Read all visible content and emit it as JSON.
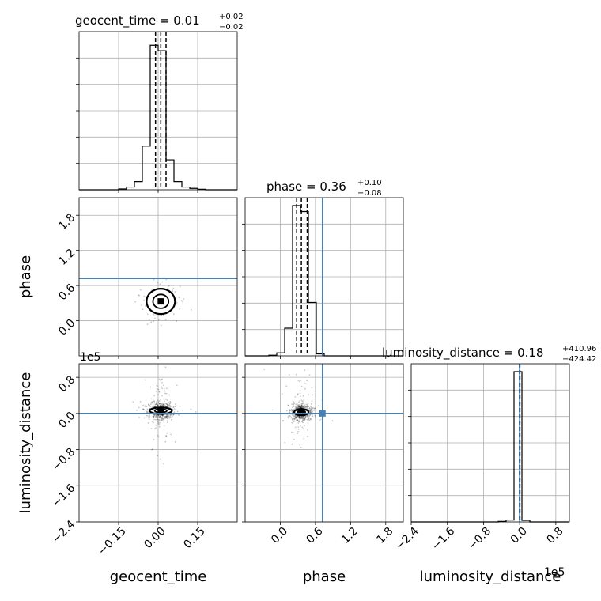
{
  "chart_data": {
    "type": "corner",
    "parameters": [
      "geocent_time",
      "phase",
      "luminosity_distance"
    ],
    "titles": [
      {
        "param": "geocent_time",
        "median": "0.01",
        "plus": "+0.02",
        "minus": "−0.02"
      },
      {
        "param": "phase",
        "median": "0.36",
        "plus": "+0.10",
        "minus": "−0.08"
      },
      {
        "param": "luminosity_distance",
        "median": "0.18",
        "plus": "+410.96",
        "minus": "−424.42"
      }
    ],
    "ranges": {
      "geocent_time": [
        -0.3,
        0.3
      ],
      "phase": [
        -0.6,
        2.1
      ],
      "luminosity_distance": [
        -240000,
        110000
      ]
    },
    "ticks": {
      "geocent_time": {
        "values": [
          -0.15,
          0.0,
          0.15
        ],
        "labels": [
          "−0.15",
          "0.00",
          "0.15"
        ]
      },
      "phase": {
        "values": [
          0.0,
          0.6,
          1.2,
          1.8
        ],
        "labels": [
          "0.0",
          "0.6",
          "1.2",
          "1.8"
        ]
      },
      "luminosity_distance": {
        "values": [
          -240000,
          -160000,
          -80000,
          0,
          80000
        ],
        "labels": [
          "−2.4",
          "−1.6",
          "−0.8",
          "0.0",
          "0.8"
        ]
      }
    },
    "offset_text": "1e5",
    "truths": {
      "phase": 0.72,
      "luminosity_distance": 0
    },
    "histograms": {
      "geocent_time": {
        "edges": [
          -0.3,
          -0.27,
          -0.24,
          -0.21,
          -0.18,
          -0.15,
          -0.12,
          -0.09,
          -0.06,
          -0.03,
          0.0,
          0.03,
          0.06,
          0.09,
          0.12,
          0.15,
          0.18,
          0.21,
          0.24,
          0.27,
          0.3
        ],
        "counts": [
          0,
          0,
          0,
          0,
          0,
          0.3,
          1,
          3,
          16,
          53,
          51,
          11,
          3,
          1,
          0.5,
          0.2,
          0,
          0,
          0,
          0
        ],
        "quantiles": [
          -0.01,
          0.01,
          0.03
        ],
        "ylim": [
          0,
          58
        ]
      },
      "phase": {
        "edges": [
          -0.6,
          -0.465,
          -0.33,
          -0.195,
          -0.06,
          0.075,
          0.21,
          0.345,
          0.48,
          0.615,
          0.75,
          0.885,
          1.02,
          1.155,
          1.29,
          1.425,
          1.56,
          1.695,
          1.83,
          1.965,
          2.1
        ],
        "counts": [
          0,
          0,
          0,
          0.3,
          1.5,
          14,
          76,
          73,
          27,
          1,
          0,
          0,
          0,
          0,
          0,
          0,
          0,
          0,
          0,
          0
        ],
        "quantiles": [
          0.28,
          0.36,
          0.46
        ],
        "ylim": [
          0,
          80
        ]
      },
      "luminosity_distance": {
        "edges": [
          -240000,
          -222500,
          -205000,
          -187500,
          -170000,
          -152500,
          -135000,
          -117500,
          -100000,
          -82500,
          -65000,
          -47500,
          -30000,
          -12500,
          5000,
          22500,
          40000,
          57500,
          75000,
          92500,
          110000
        ],
        "counts": [
          0,
          0,
          0,
          0,
          0,
          0,
          0,
          0,
          0,
          0,
          0,
          0.3,
          1.2,
          95,
          1,
          0,
          0,
          0,
          0,
          0
        ],
        "quantiles": [
          -424,
          0.18,
          411
        ],
        "ylim": [
          0,
          100
        ]
      }
    },
    "scatter_centers": {
      "geocent_time_vs_phase": [
        0.01,
        0.33
      ],
      "geocent_time_vs_luminosity_distance": [
        0.01,
        6000
      ],
      "phase_vs_luminosity_distance": [
        0.36,
        3000
      ]
    },
    "grid": true
  }
}
